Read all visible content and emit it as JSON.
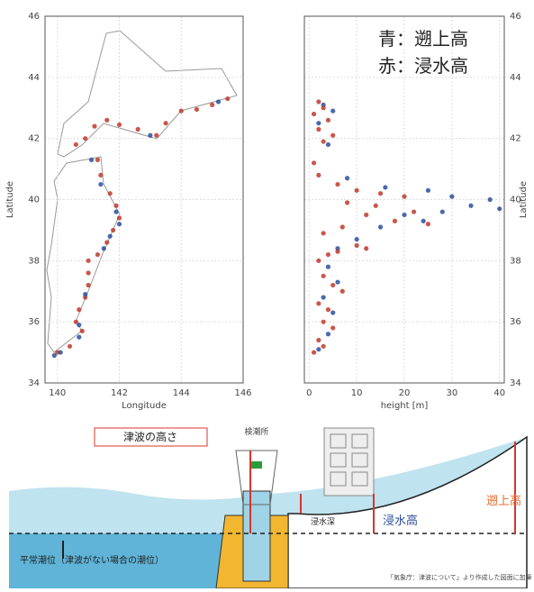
{
  "chart_data": [
    {
      "type": "scatter",
      "xlabel": "Longitude",
      "ylabel": "Latitude",
      "xlim": [
        139.6,
        146
      ],
      "ylim": [
        34,
        46
      ],
      "xticks": [
        140,
        142,
        144,
        146
      ],
      "yticks": [
        34,
        36,
        38,
        40,
        42,
        44,
        46
      ],
      "grid": true,
      "series": [
        {
          "color": "#c0392b",
          "x": [
            145.5,
            145.0,
            144.5,
            144.0,
            143.5,
            143.2,
            142.6,
            142.0,
            141.6,
            141.2,
            140.9,
            140.6,
            141.3,
            141.4,
            141.7,
            141.9,
            142.0,
            141.8,
            141.6,
            141.3,
            141.0,
            141.0,
            141.0,
            140.9,
            140.7,
            140.6,
            140.8,
            140.4,
            140.0
          ],
          "y": [
            43.3,
            43.1,
            42.95,
            42.9,
            42.5,
            42.1,
            42.3,
            42.45,
            42.6,
            42.4,
            42.0,
            41.8,
            41.3,
            40.8,
            40.2,
            39.8,
            39.4,
            39.0,
            38.6,
            38.2,
            38.0,
            37.6,
            37.2,
            36.8,
            36.4,
            36.0,
            35.7,
            35.2,
            35.0
          ]
        },
        {
          "color": "#2c4f9e",
          "x": [
            141.9,
            142.0,
            141.7,
            141.5,
            140.9,
            140.7,
            140.1,
            139.9,
            140.7,
            143.0,
            145.2,
            141.4,
            141.1
          ],
          "y": [
            39.6,
            39.2,
            38.8,
            38.4,
            36.9,
            35.5,
            35.0,
            34.9,
            35.9,
            42.1,
            43.2,
            40.5,
            41.3
          ]
        }
      ]
    },
    {
      "type": "scatter",
      "xlabel": "height [m]",
      "ylabel": "Latitude",
      "xlim": [
        -1,
        41
      ],
      "ylim": [
        34,
        46
      ],
      "xticks": [
        0,
        10,
        20,
        30,
        40
      ],
      "yticks": [
        34,
        36,
        38,
        40,
        42,
        44,
        46
      ],
      "grid": true,
      "series": [
        {
          "name": "青：遡上高",
          "color": "#2c4f9e",
          "x": [
            3,
            5,
            2,
            4,
            8,
            16,
            25,
            30,
            38,
            34,
            28,
            40,
            20,
            24,
            15,
            10,
            6,
            4,
            6,
            3,
            5,
            4,
            2
          ],
          "y": [
            43.1,
            42.9,
            42.5,
            41.8,
            40.7,
            40.4,
            40.3,
            40.1,
            40.0,
            39.8,
            39.6,
            39.7,
            39.5,
            39.3,
            39.1,
            38.7,
            38.4,
            37.8,
            37.3,
            36.8,
            36.3,
            35.6,
            35.1
          ]
        },
        {
          "name": "赤：浸水高",
          "color": "#c0392b",
          "x": [
            2,
            3,
            1,
            4,
            2,
            5,
            3,
            1,
            2,
            6,
            10,
            15,
            20,
            8,
            14,
            22,
            12,
            18,
            25,
            7,
            3,
            10,
            6,
            4,
            12,
            2,
            3,
            5,
            7,
            2,
            4,
            3,
            5,
            2,
            3,
            1
          ],
          "y": [
            43.2,
            43.0,
            42.8,
            42.6,
            42.3,
            42.1,
            41.9,
            41.2,
            40.8,
            40.5,
            40.3,
            40.2,
            40.1,
            39.9,
            39.8,
            39.6,
            39.5,
            39.3,
            39.2,
            39.1,
            38.9,
            38.5,
            38.3,
            38.2,
            38.4,
            38.0,
            37.5,
            37.2,
            37.0,
            36.6,
            36.4,
            36.0,
            35.8,
            35.4,
            35.2,
            35.0
          ]
        }
      ]
    }
  ],
  "diagram": {
    "tsunami_height": "津波の高さ",
    "tide_station": "検潮所",
    "inundation_depth": "浸水深",
    "inundation_height": "浸水高",
    "runup_height": "遡上高",
    "normal_tide": "平常潮位（津波がない場合の潮位）",
    "source": "「気象庁：津波について」より作成した図面に加筆"
  }
}
